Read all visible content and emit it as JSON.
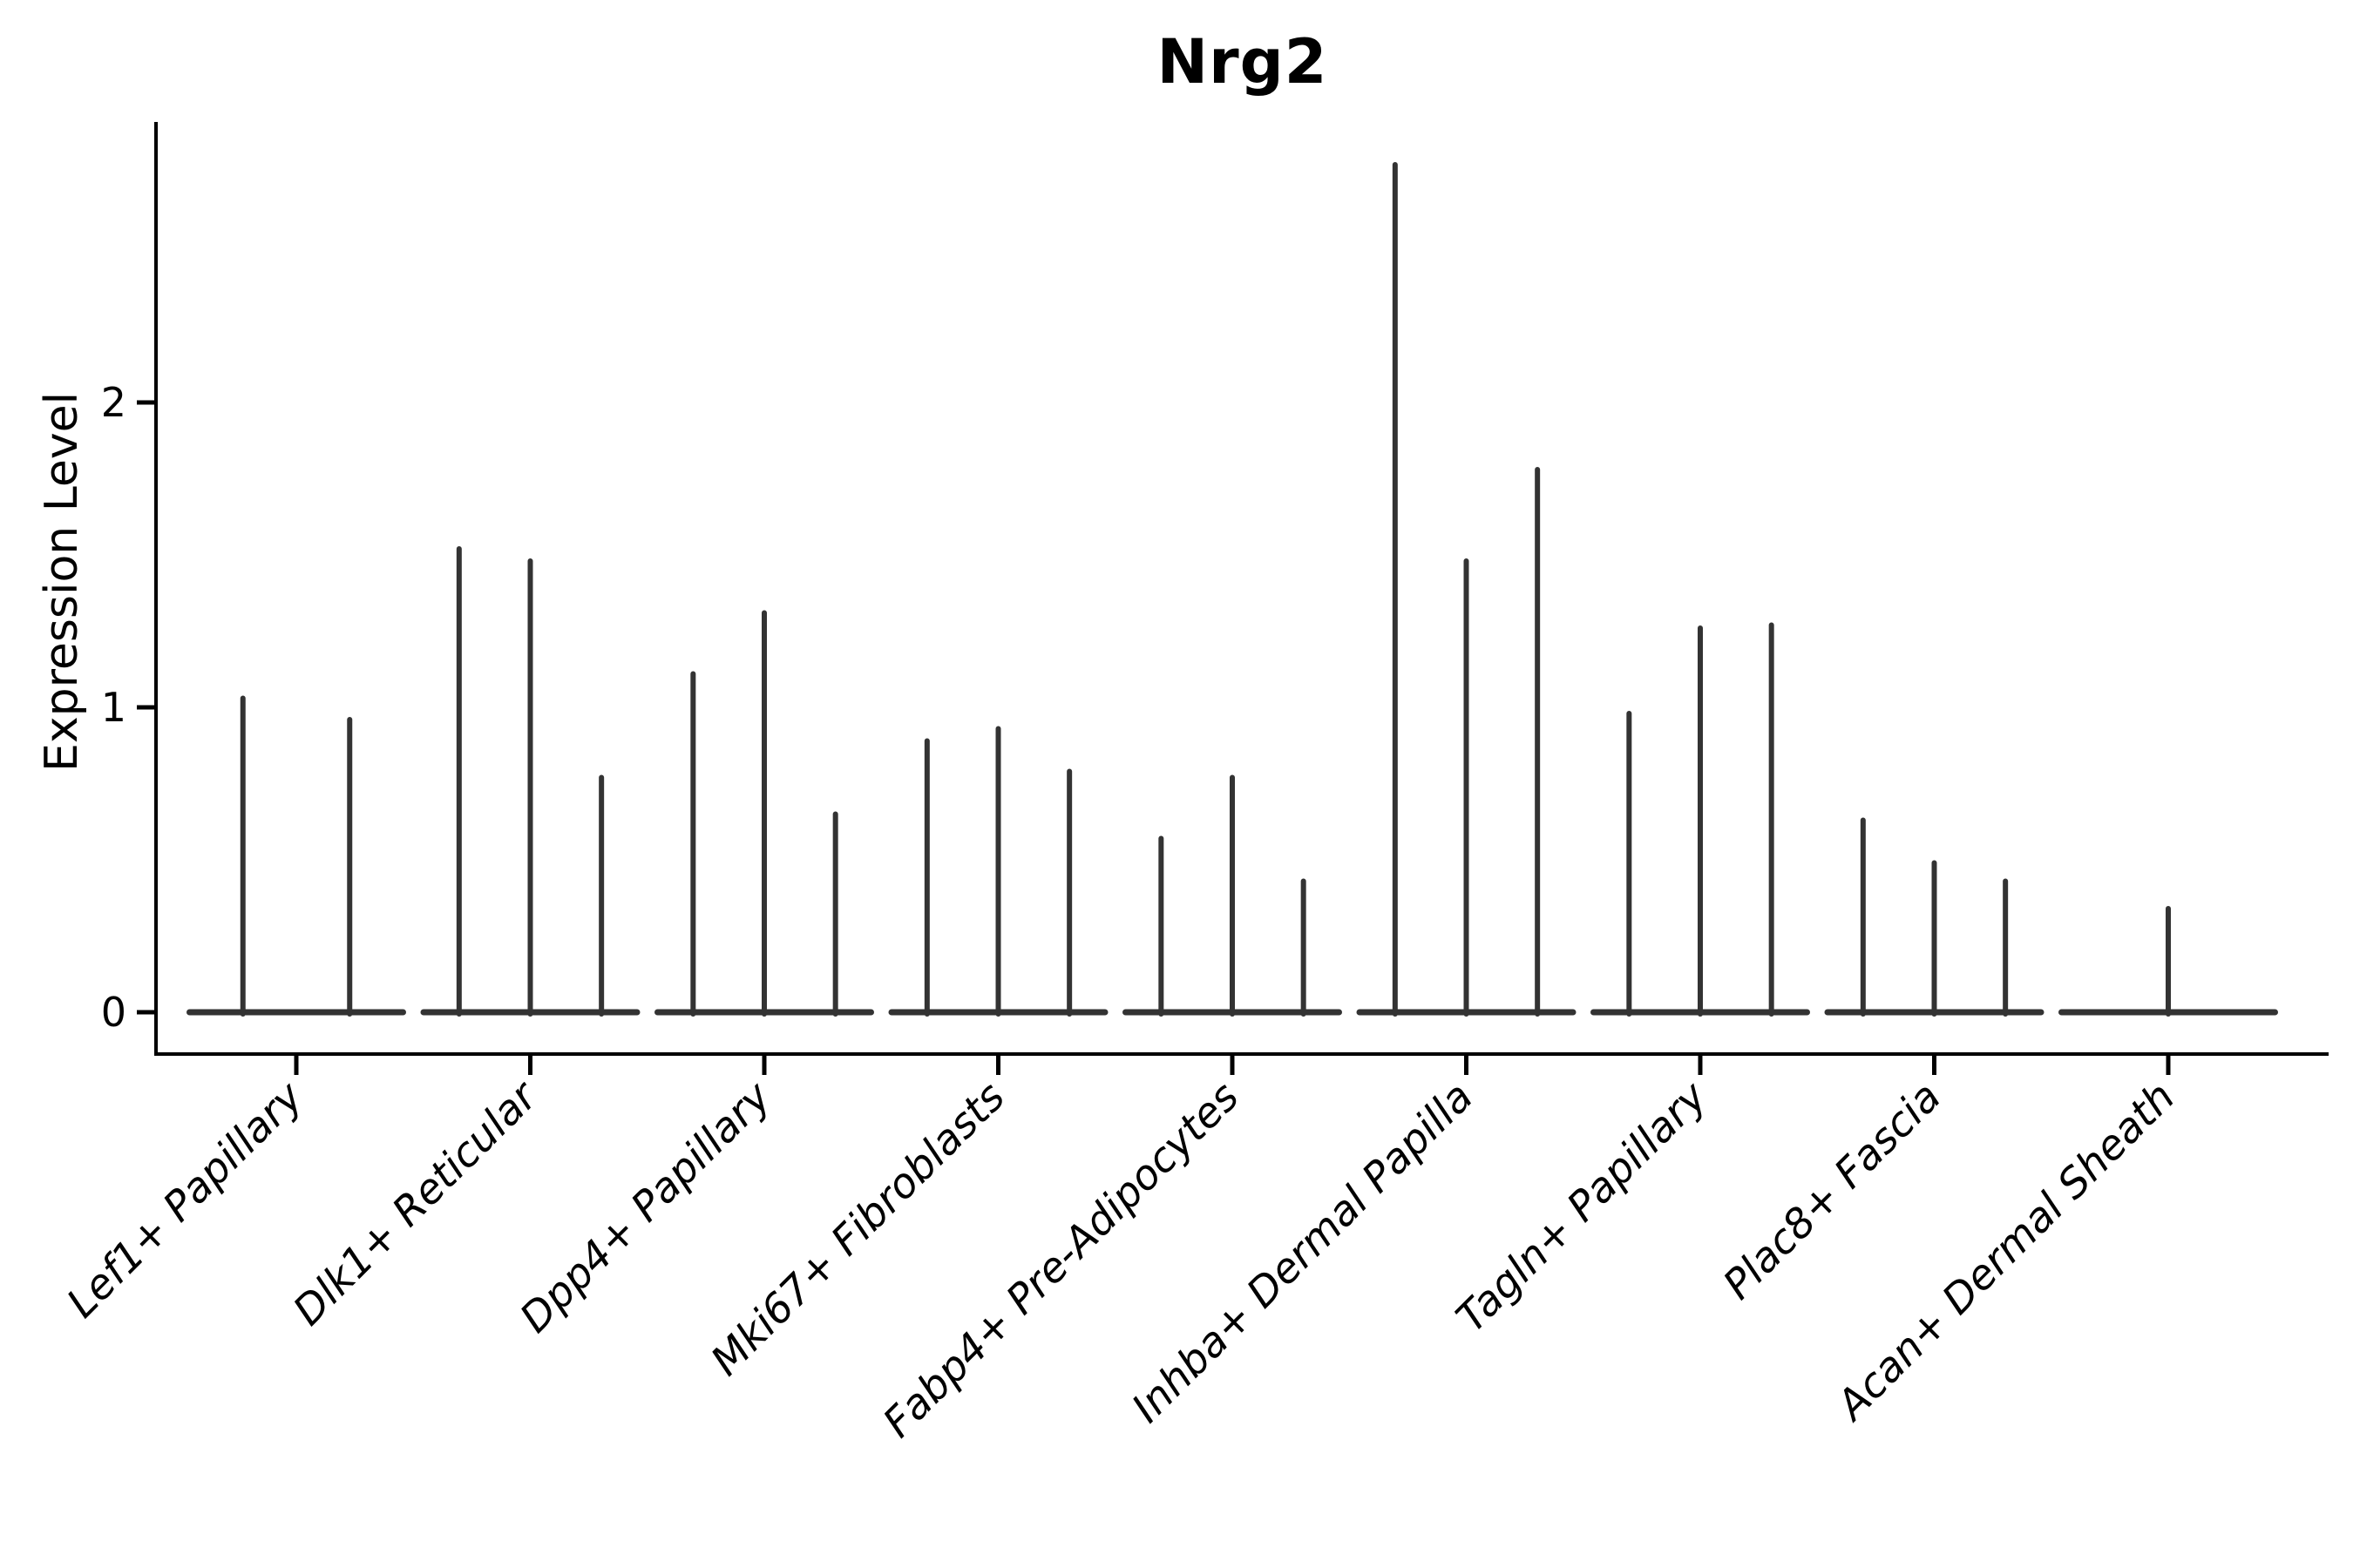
{
  "chart_data": {
    "type": "violin",
    "title": "Nrg2",
    "ylabel": "Expression Level",
    "xlabel": "",
    "yticks": [
      "0",
      "1",
      "2"
    ],
    "ytick_values": [
      0,
      1,
      2
    ],
    "ylim": [
      -0.14,
      2.92
    ],
    "grid": "off",
    "legend": "none",
    "categories": [
      "Lef1+ Papillary",
      "Dlk1+ Reticular",
      "Dpp4+ Papillary",
      "Mki67+ Fibroblasts",
      "Fabp4+ Pre-Adipocytes",
      "Inhba+ Dermal Papilla",
      "Tagln+ Papillary",
      "Plac8+ Fascia",
      "Acan+ Dermal Sheath"
    ],
    "series": [
      {
        "category": "Lef1+ Papillary",
        "max_expression_per_violin": [
          1.03,
          0.96
        ]
      },
      {
        "category": "Dlk1+ Reticular",
        "max_expression_per_violin": [
          1.52,
          1.48,
          0.77
        ]
      },
      {
        "category": "Dpp4+ Papillary",
        "max_expression_per_violin": [
          1.11,
          1.31,
          0.65
        ]
      },
      {
        "category": "Mki67+ Fibroblasts",
        "max_expression_per_violin": [
          0.89,
          0.93,
          0.79
        ]
      },
      {
        "category": "Fabp4+ Pre-Adipocytes",
        "max_expression_per_violin": [
          0.57,
          0.77,
          0.43
        ]
      },
      {
        "category": "Inhba+ Dermal Papilla",
        "max_expression_per_violin": [
          2.78,
          1.48,
          1.78
        ]
      },
      {
        "category": "Tagln+ Papillary",
        "max_expression_per_violin": [
          0.98,
          1.26,
          1.27
        ]
      },
      {
        "category": "Plac8+ Fascia",
        "max_expression_per_violin": [
          0.63,
          0.49,
          0.43
        ]
      },
      {
        "category": "Acan+ Dermal Sheath",
        "max_expression_per_violin": [
          0,
          0.34,
          0
        ]
      }
    ],
    "colors": {
      "violin": "#333333",
      "axis": "#000000",
      "text": "#000000",
      "background": "#ffffff"
    }
  }
}
